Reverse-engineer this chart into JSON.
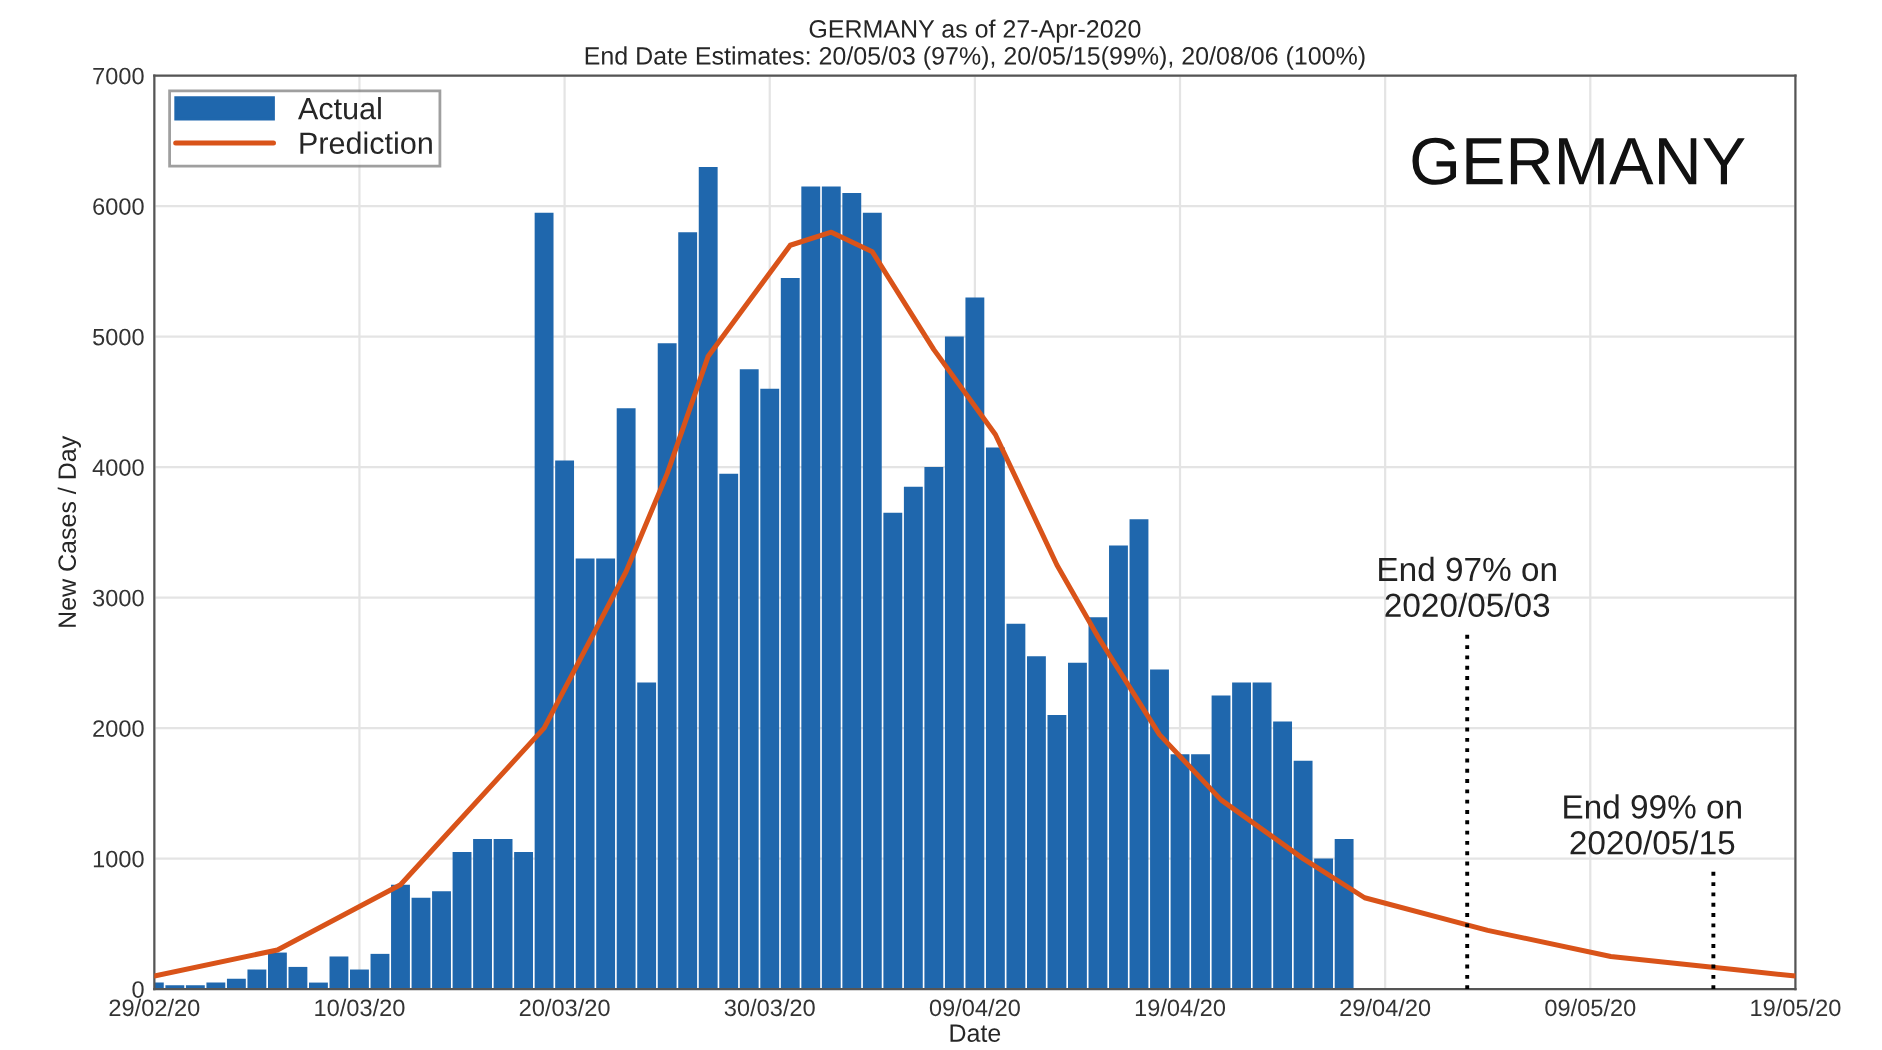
{
  "chart_data": {
    "type": "bar",
    "title": "GERMANY as of 27-Apr-2020",
    "subtitle": "End Date Estimates: 20/05/03 (97%), 20/05/15(99%), 20/08/06 (100%)",
    "xlabel": "Date",
    "ylabel": "New Cases / Day",
    "x": [
      "2020-02-29",
      "2020-03-01",
      "2020-03-02",
      "2020-03-03",
      "2020-03-04",
      "2020-03-05",
      "2020-03-06",
      "2020-03-07",
      "2020-03-08",
      "2020-03-09",
      "2020-03-10",
      "2020-03-11",
      "2020-03-12",
      "2020-03-13",
      "2020-03-14",
      "2020-03-15",
      "2020-03-16",
      "2020-03-17",
      "2020-03-18",
      "2020-03-19",
      "2020-03-20",
      "2020-03-21",
      "2020-03-22",
      "2020-03-23",
      "2020-03-24",
      "2020-03-25",
      "2020-03-26",
      "2020-03-27",
      "2020-03-28",
      "2020-03-29",
      "2020-03-30",
      "2020-03-31",
      "2020-04-01",
      "2020-04-02",
      "2020-04-03",
      "2020-04-04",
      "2020-04-05",
      "2020-04-06",
      "2020-04-07",
      "2020-04-08",
      "2020-04-09",
      "2020-04-10",
      "2020-04-11",
      "2020-04-12",
      "2020-04-13",
      "2020-04-14",
      "2020-04-15",
      "2020-04-16",
      "2020-04-17",
      "2020-04-18",
      "2020-04-19",
      "2020-04-20",
      "2020-04-21",
      "2020-04-22",
      "2020-04-23",
      "2020-04-24",
      "2020-04-25",
      "2020-04-26",
      "2020-04-27"
    ],
    "series": [
      {
        "name": "Actual",
        "color": "#1f67ad",
        "values": [
          50,
          30,
          30,
          50,
          80,
          150,
          280,
          170,
          50,
          250,
          150,
          270,
          800,
          700,
          750,
          1050,
          1150,
          1150,
          1050,
          5950,
          4050,
          3300,
          3300,
          4450,
          2350,
          4950,
          5800,
          6300,
          3950,
          4750,
          4600,
          5450,
          6150,
          6150,
          6100,
          5950,
          3650,
          3850,
          4000,
          5000,
          5300,
          4150,
          2800,
          2550,
          2100,
          2500,
          2850,
          3400,
          3600,
          2450,
          1800,
          1800,
          2250,
          2350,
          2350,
          2050,
          1750,
          1000,
          1150
        ]
      },
      {
        "name": "Prediction",
        "type": "line",
        "color": "#d95319",
        "x": [
          "2020-02-29",
          "2020-03-06",
          "2020-03-12",
          "2020-03-19",
          "2020-03-23",
          "2020-03-25",
          "2020-03-27",
          "2020-03-31",
          "2020-04-02",
          "2020-04-04",
          "2020-04-07",
          "2020-04-10",
          "2020-04-13",
          "2020-04-15",
          "2020-04-18",
          "2020-04-21",
          "2020-04-25",
          "2020-04-28",
          "2020-05-04",
          "2020-05-10",
          "2020-05-16",
          "2020-05-19"
        ],
        "values": [
          100,
          300,
          800,
          2000,
          3200,
          3950,
          4850,
          5700,
          5800,
          5650,
          4900,
          4250,
          3250,
          2700,
          1950,
          1450,
          1000,
          700,
          450,
          250,
          150,
          100
        ]
      }
    ],
    "xlim": [
      "2020-02-29",
      "2020-05-19"
    ],
    "xticks": [
      {
        "value": "2020-02-29",
        "label": "29/02/20"
      },
      {
        "value": "2020-03-10",
        "label": "10/03/20"
      },
      {
        "value": "2020-03-20",
        "label": "20/03/20"
      },
      {
        "value": "2020-03-30",
        "label": "30/03/20"
      },
      {
        "value": "2020-04-09",
        "label": "09/04/20"
      },
      {
        "value": "2020-04-19",
        "label": "19/04/20"
      },
      {
        "value": "2020-04-29",
        "label": "29/04/20"
      },
      {
        "value": "2020-05-09",
        "label": "09/05/20"
      },
      {
        "value": "2020-05-19",
        "label": "19/05/20"
      }
    ],
    "ylim": [
      0,
      7000
    ],
    "yticks": [
      0,
      1000,
      2000,
      3000,
      4000,
      5000,
      6000,
      7000
    ],
    "ref_lines": [
      {
        "axis": "x",
        "value": "2020-05-03",
        "label": "End 97% on\n2020/05/03",
        "color": "#000000",
        "line_style": "dotted"
      },
      {
        "axis": "x",
        "value": "2020-05-15",
        "label": "End 99% on\n2020/05/15",
        "color": "#000000",
        "line_style": "dotted"
      }
    ],
    "annotations": [
      "GERMANY"
    ],
    "grid": true,
    "legend": "top left"
  }
}
